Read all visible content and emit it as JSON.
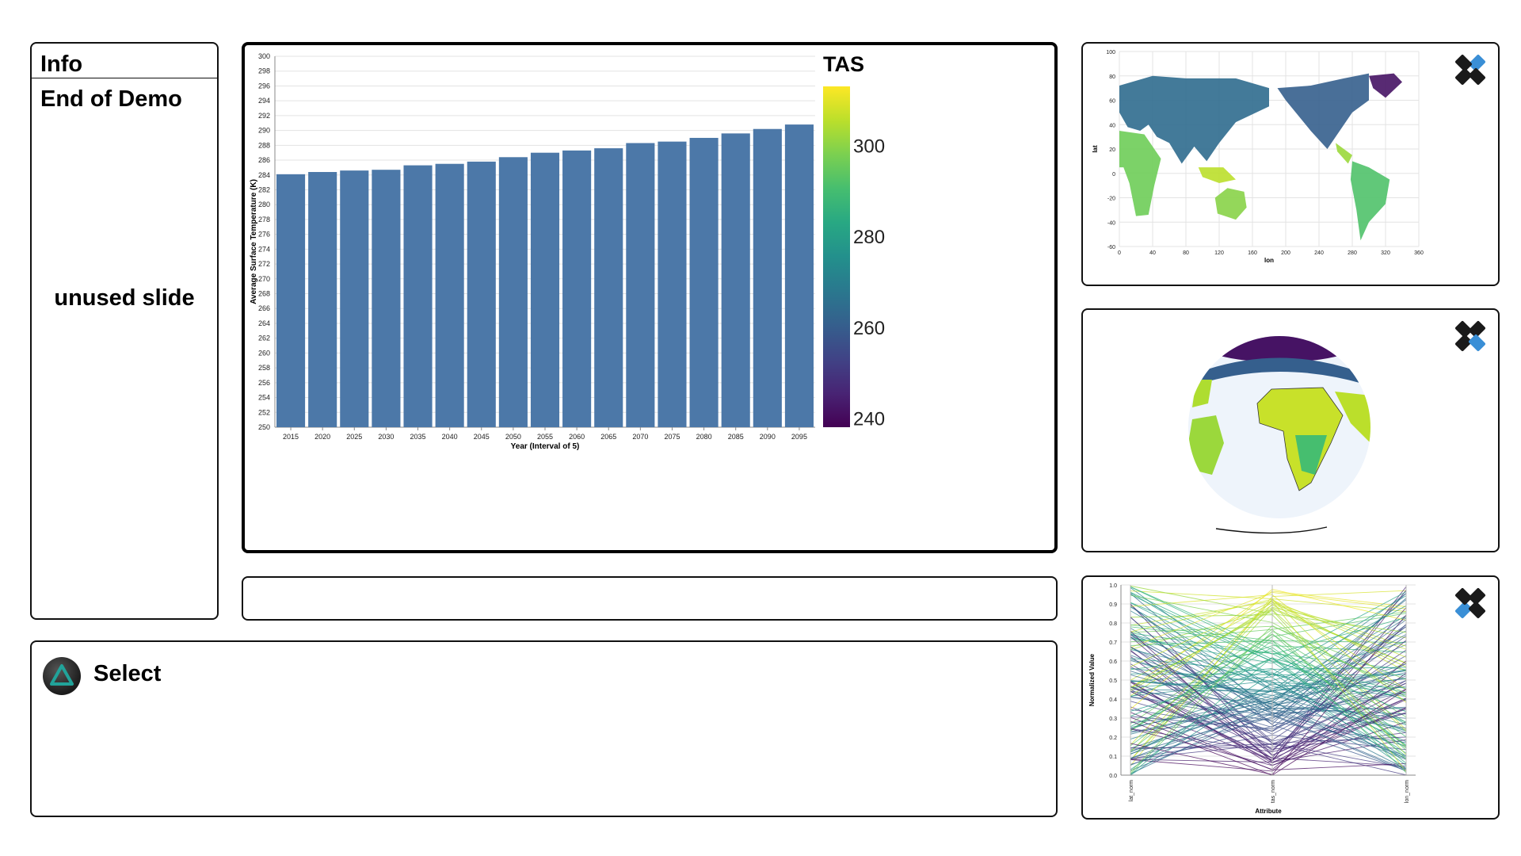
{
  "info": {
    "title": "Info",
    "subtitle": "End of Demo",
    "body": "unused slide"
  },
  "select": {
    "label": "Select"
  },
  "icons": {
    "select": "triangle-button-icon",
    "widget_control": "gamepad-dpad-icon"
  },
  "colors": {
    "bar": "#4c78a8",
    "accent": "#4c78a8",
    "teal": "#21a39a"
  },
  "chart_data": [
    {
      "type": "bar",
      "categories": [
        "2015",
        "2020",
        "2025",
        "2030",
        "2035",
        "2040",
        "2045",
        "2050",
        "2055",
        "2060",
        "2065",
        "2070",
        "2075",
        "2080",
        "2085",
        "2090",
        "2095"
      ],
      "values": [
        284.1,
        284.4,
        284.6,
        284.7,
        285.3,
        285.5,
        285.8,
        286.4,
        287.0,
        287.3,
        287.6,
        288.3,
        288.5,
        289.0,
        289.6,
        290.2,
        290.8
      ],
      "xlabel": "Year (Interval of 5)",
      "ylabel": "Average Surface Temperature (K)",
      "ylim": [
        250,
        300
      ],
      "yticks": [
        250,
        252,
        254,
        256,
        258,
        260,
        262,
        264,
        266,
        268,
        270,
        272,
        274,
        276,
        278,
        280,
        282,
        284,
        286,
        288,
        290,
        292,
        294,
        296,
        298,
        300
      ],
      "legend": {
        "title": "TAS",
        "ticks": [
          300,
          280,
          260,
          240
        ],
        "range": [
          238,
          313
        ],
        "scheme": "viridis",
        "placement": "right"
      },
      "grid": true
    },
    {
      "type": "scatter",
      "xlabel": "lon",
      "ylabel": "lat",
      "xlim": [
        0,
        360
      ],
      "ylim": [
        -60,
        100
      ],
      "xticks": [
        0,
        40,
        80,
        120,
        160,
        200,
        240,
        280,
        320,
        360
      ],
      "yticks": [
        100,
        80,
        60,
        40,
        20,
        0,
        -20,
        -40,
        -60
      ],
      "color_scheme": "viridis",
      "grid": true
    },
    {
      "type": "line",
      "xlabel": "Attribute",
      "ylabel": "Normalized Value",
      "categories": [
        "lat_norm",
        "tas_norm",
        "lon_norm"
      ],
      "ylim": [
        0,
        1
      ],
      "yticks": [
        "0.0",
        "0.1",
        "0.2",
        "0.3",
        "0.4",
        "0.5",
        "0.6",
        "0.7",
        "0.8",
        "0.9",
        "1.0"
      ],
      "color_scheme": "viridis",
      "grid": true
    }
  ]
}
